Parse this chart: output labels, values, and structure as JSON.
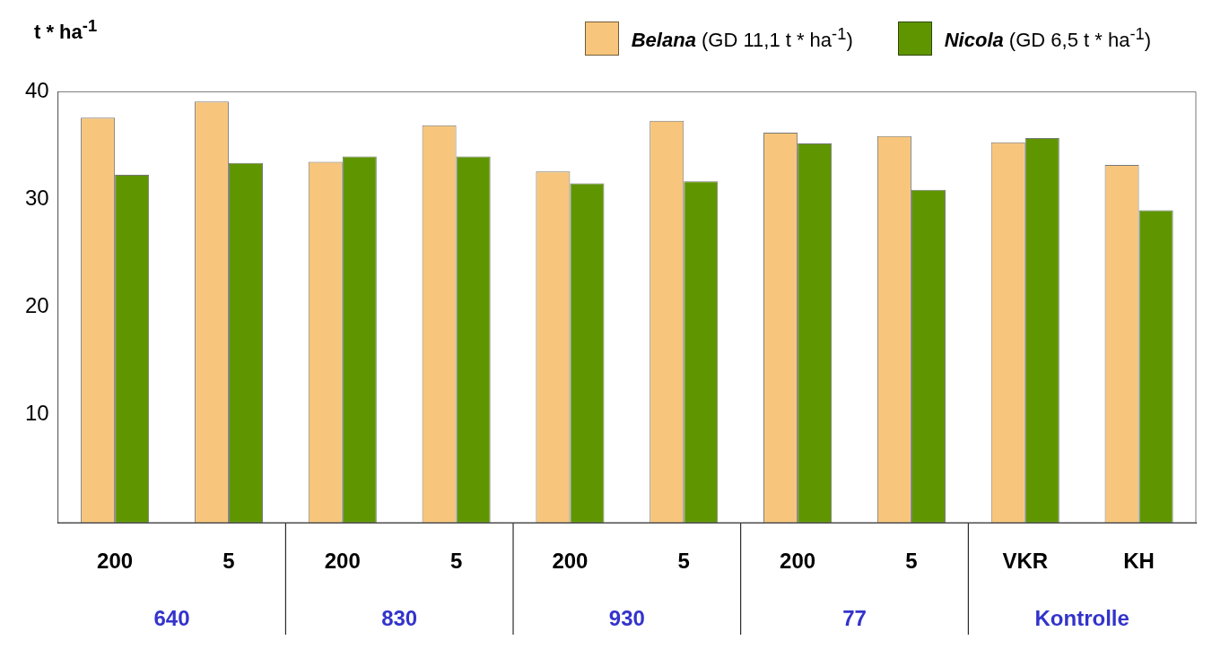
{
  "chart_data": {
    "type": "bar",
    "ylabel": "t * ha$^{-1}$",
    "categories": [
      "200",
      "5",
      "200",
      "5",
      "200",
      "5",
      "200",
      "5",
      "VKR",
      "KH"
    ],
    "series": [
      {
        "name": "Belana (GD 11,1 t * ha$^{-1}$)",
        "color": "#f7c67c",
        "values": [
          37.6,
          39.1,
          33.5,
          36.9,
          32.6,
          37.3,
          36.2,
          35.9,
          35.3,
          33.2
        ]
      },
      {
        "name": "Nicola (GD 6,5 t * ha$^{-1}$)",
        "color": "#5f9600",
        "values": [
          32.3,
          33.4,
          34.0,
          34.0,
          31.5,
          31.7,
          35.2,
          30.9,
          35.7,
          29.0
        ]
      }
    ],
    "annotations": [
      "640",
      "830",
      "930",
      "77",
      "Kontrolle"
    ],
    "ylim": [
      0,
      40
    ],
    "yticks": [
      10,
      20,
      30,
      40
    ],
    "grid": false,
    "legend": "top right"
  }
}
